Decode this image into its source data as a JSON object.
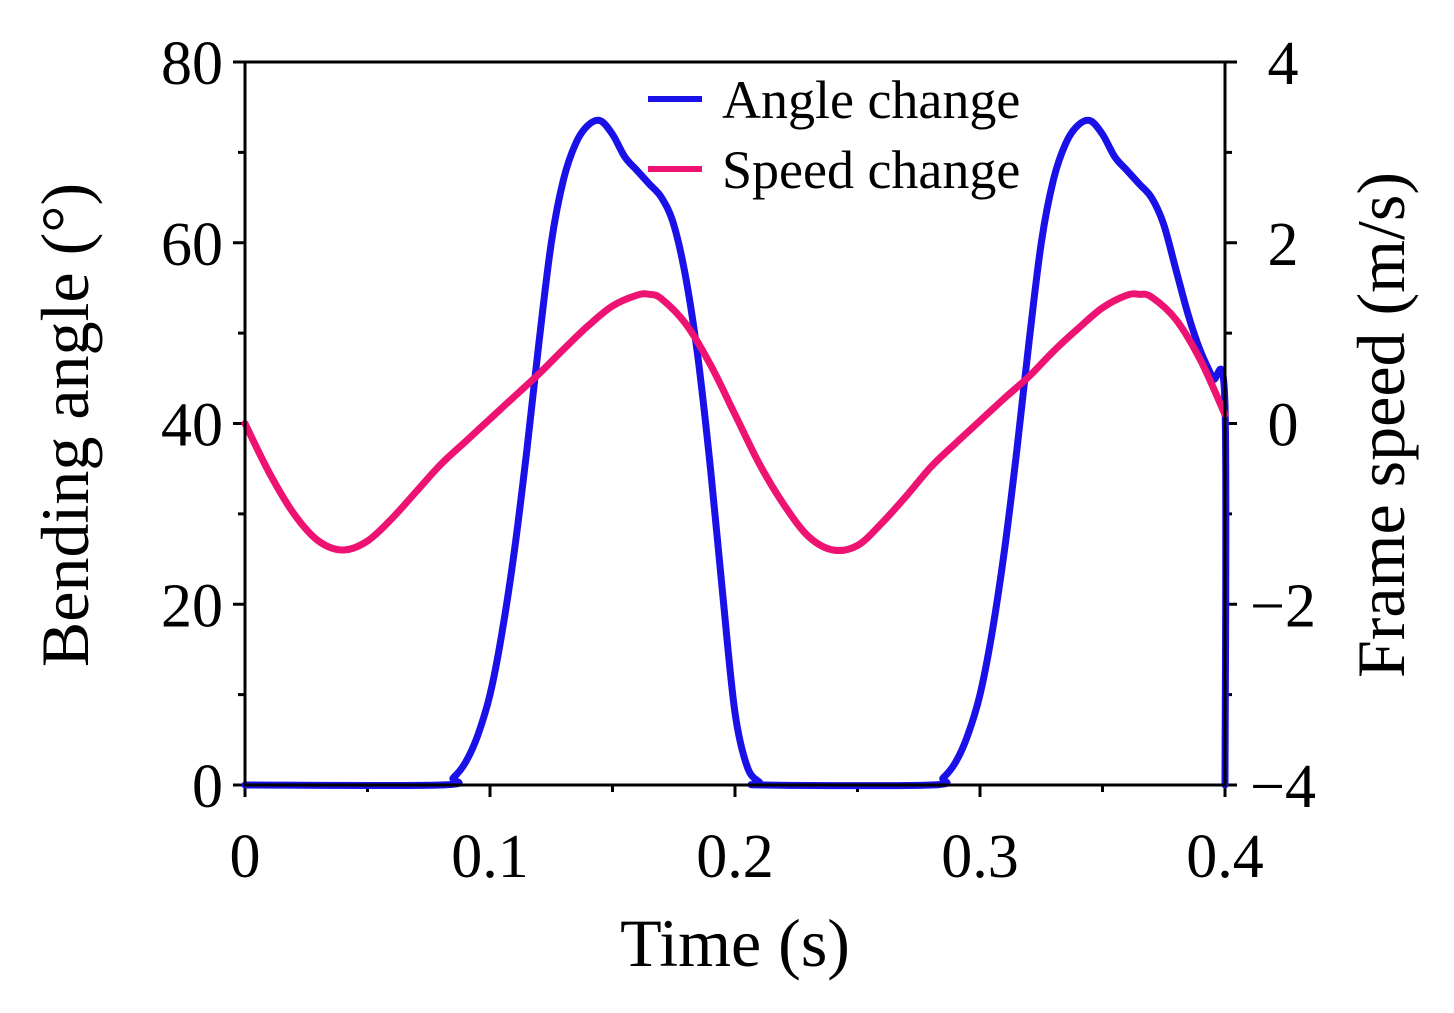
{
  "chart_data": {
    "type": "line",
    "title": "",
    "xlabel": "Time (s)",
    "ylabel": "Bending angle (°)",
    "y2label": "Frame speed (m/s)",
    "xlim": [
      0,
      0.4
    ],
    "ylim": [
      0,
      80
    ],
    "y2lim": [
      -4,
      4
    ],
    "x_ticks": [
      {
        "value": 0,
        "label": "0"
      },
      {
        "value": 0.1,
        "label": "0.1"
      },
      {
        "value": 0.2,
        "label": "0.2"
      },
      {
        "value": 0.3,
        "label": "0.3"
      },
      {
        "value": 0.4,
        "label": "0.4"
      }
    ],
    "y_ticks": [
      {
        "value": 0,
        "label": "0"
      },
      {
        "value": 20,
        "label": "20"
      },
      {
        "value": 40,
        "label": "40"
      },
      {
        "value": 60,
        "label": "60"
      },
      {
        "value": 80,
        "label": "80"
      }
    ],
    "y2_ticks": [
      {
        "value": -4,
        "label": "−4"
      },
      {
        "value": -2,
        "label": "−2"
      },
      {
        "value": 0,
        "label": "0"
      },
      {
        "value": 2,
        "label": "2"
      },
      {
        "value": 4,
        "label": "4"
      }
    ],
    "grid": false,
    "legend_position": "top-right",
    "series": [
      {
        "name": "Angle change",
        "axis": "left",
        "color": "#1a10e8",
        "x": [
          0,
          0.08,
          0.085,
          0.09,
          0.095,
          0.1,
          0.105,
          0.11,
          0.115,
          0.12,
          0.125,
          0.13,
          0.135,
          0.14,
          0.145,
          0.15,
          0.155,
          0.16,
          0.165,
          0.17,
          0.175,
          0.18,
          0.185,
          0.19,
          0.195,
          0.2,
          0.205,
          0.21,
          0.212,
          0.28,
          0.285,
          0.29,
          0.295,
          0.3,
          0.305,
          0.31,
          0.315,
          0.32,
          0.325,
          0.33,
          0.335,
          0.34,
          0.345,
          0.35,
          0.355,
          0.36,
          0.365,
          0.37,
          0.375,
          0.38,
          0.385,
          0.39,
          0.395,
          0.4,
          0.4
        ],
        "values": [
          0,
          0,
          0.8,
          2.5,
          5.5,
          10,
          17,
          26,
          37,
          49,
          60,
          67,
          71,
          73,
          73.5,
          72,
          69.5,
          68,
          66.5,
          65,
          62,
          56,
          47,
          35,
          21,
          8,
          2,
          0.3,
          0,
          0,
          0.8,
          2.5,
          5.5,
          10,
          17,
          26,
          37,
          49,
          60,
          67,
          71,
          73,
          73.5,
          72,
          69.5,
          68,
          66.5,
          65,
          62,
          57,
          52,
          48,
          45,
          42,
          0
        ]
      },
      {
        "name": "Speed change",
        "axis": "right",
        "color": "#ee1272",
        "x": [
          0,
          0.01,
          0.02,
          0.03,
          0.04,
          0.05,
          0.06,
          0.07,
          0.08,
          0.09,
          0.1,
          0.11,
          0.12,
          0.13,
          0.14,
          0.15,
          0.16,
          0.165,
          0.17,
          0.18,
          0.19,
          0.2,
          0.21,
          0.22,
          0.23,
          0.24,
          0.25,
          0.26,
          0.27,
          0.28,
          0.29,
          0.3,
          0.31,
          0.32,
          0.33,
          0.34,
          0.35,
          0.36,
          0.365,
          0.37,
          0.38,
          0.39,
          0.4
        ],
        "values": [
          0,
          -0.55,
          -1.0,
          -1.3,
          -1.4,
          -1.3,
          -1.05,
          -0.75,
          -0.45,
          -0.2,
          0.05,
          0.3,
          0.55,
          0.82,
          1.08,
          1.3,
          1.42,
          1.43,
          1.38,
          1.1,
          0.65,
          0.1,
          -0.45,
          -0.9,
          -1.25,
          -1.4,
          -1.35,
          -1.1,
          -0.8,
          -0.48,
          -0.22,
          0.03,
          0.28,
          0.52,
          0.8,
          1.05,
          1.28,
          1.42,
          1.43,
          1.4,
          1.15,
          0.7,
          0.1
        ]
      }
    ]
  }
}
